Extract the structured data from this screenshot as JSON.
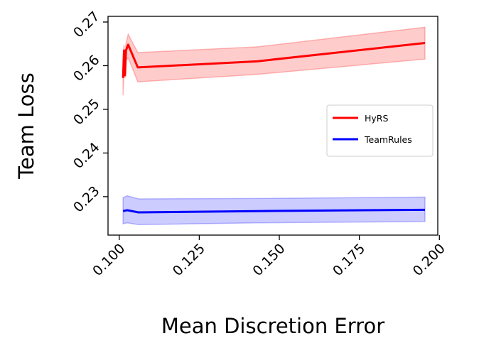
{
  "chart_data": {
    "type": "line",
    "title": "",
    "xlabel": "Mean Discretion Error",
    "ylabel": "Team Loss",
    "xlim": [
      0.0965,
      0.1995
    ],
    "ylim": [
      0.2212,
      0.2713
    ],
    "xticks": [
      {
        "value": 0.1,
        "label": "0.100"
      },
      {
        "value": 0.125,
        "label": "0.125"
      },
      {
        "value": 0.15,
        "label": "0.150"
      },
      {
        "value": 0.175,
        "label": "0.175"
      },
      {
        "value": 0.2,
        "label": "0.200"
      }
    ],
    "yticks": [
      {
        "value": 0.23,
        "label": "0.23"
      },
      {
        "value": 0.24,
        "label": "0.24"
      },
      {
        "value": 0.25,
        "label": "0.25"
      },
      {
        "value": 0.26,
        "label": "0.26"
      },
      {
        "value": 0.27,
        "label": "0.27"
      }
    ],
    "grid": false,
    "legend_position": "center-right",
    "series": [
      {
        "name": "HyRS",
        "color": "#ff0000",
        "band_color": "#ff0000",
        "x": [
          0.1012,
          0.1015,
          0.1018,
          0.1021,
          0.1028,
          0.1058,
          0.143,
          0.1955
        ],
        "y": [
          0.2572,
          0.2635,
          0.2578,
          0.2635,
          0.2648,
          0.2596,
          0.261,
          0.2652
        ],
        "lower": [
          0.2532,
          0.259,
          0.2572,
          0.2612,
          0.2618,
          0.2563,
          0.258,
          0.2615
        ],
        "upper": [
          0.2617,
          0.2648,
          0.2612,
          0.265,
          0.2672,
          0.263,
          0.2643,
          0.2688
        ]
      },
      {
        "name": "TeamRules",
        "color": "#0000ff",
        "band_color": "#0000ff",
        "x": [
          0.1012,
          0.1025,
          0.106,
          0.143,
          0.1955
        ],
        "y": [
          0.2267,
          0.2269,
          0.2264,
          0.2267,
          0.227
        ],
        "lower": [
          0.2238,
          0.224,
          0.2236,
          0.224,
          0.2243
        ],
        "upper": [
          0.2298,
          0.2302,
          0.2295,
          0.2296,
          0.2299
        ]
      }
    ]
  }
}
